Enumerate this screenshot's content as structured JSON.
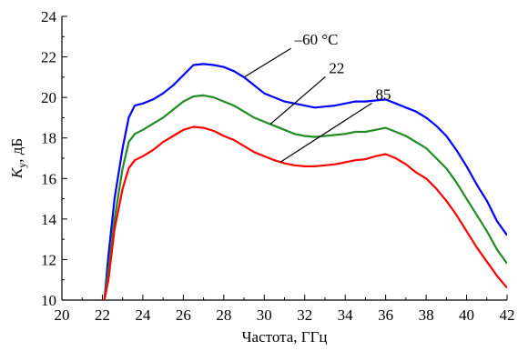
{
  "chart_data": {
    "type": "line",
    "xlabel": "Частота, ГГц",
    "ylabel_main": "K",
    "ylabel_sub": "у",
    "ylabel_rest": ", дБ",
    "xlim": [
      20,
      42
    ],
    "ylim": [
      10,
      24
    ],
    "xticks": [
      20,
      22,
      24,
      26,
      28,
      30,
      32,
      34,
      36,
      38,
      40,
      42
    ],
    "yticks": [
      10,
      12,
      14,
      16,
      18,
      20,
      22,
      24
    ],
    "grid": false,
    "legend": "none",
    "series": [
      {
        "name": "–60 °С",
        "color": "#0000ff",
        "x": [
          22.1,
          22.3,
          22.6,
          23.0,
          23.3,
          23.6,
          24.0,
          24.5,
          25.0,
          25.5,
          26.0,
          26.5,
          27.0,
          27.5,
          28.0,
          28.5,
          29.0,
          29.5,
          30.0,
          30.5,
          31.0,
          31.5,
          32.0,
          32.5,
          33.0,
          33.5,
          34.0,
          34.5,
          35.0,
          35.5,
          36.0,
          36.5,
          37.0,
          37.5,
          38.0,
          38.5,
          39.0,
          39.5,
          40.0,
          40.5,
          41.0,
          41.5,
          42.0
        ],
        "y": [
          10.0,
          12.2,
          15.0,
          17.5,
          19.0,
          19.6,
          19.7,
          19.9,
          20.2,
          20.6,
          21.1,
          21.6,
          21.65,
          21.6,
          21.5,
          21.3,
          21.0,
          20.6,
          20.2,
          20.0,
          19.8,
          19.7,
          19.6,
          19.5,
          19.55,
          19.6,
          19.7,
          19.8,
          19.8,
          19.85,
          19.9,
          19.7,
          19.5,
          19.3,
          19.0,
          18.6,
          18.1,
          17.4,
          16.6,
          15.7,
          14.9,
          13.9,
          13.2
        ]
      },
      {
        "name": "22",
        "color": "#228b22",
        "x": [
          22.1,
          22.3,
          22.6,
          23.0,
          23.3,
          23.6,
          24.0,
          24.5,
          25.0,
          25.5,
          26.0,
          26.5,
          27.0,
          27.5,
          28.0,
          28.5,
          29.0,
          29.5,
          30.0,
          30.5,
          31.0,
          31.5,
          32.0,
          32.5,
          33.0,
          33.5,
          34.0,
          34.5,
          35.0,
          35.5,
          36.0,
          36.5,
          37.0,
          37.5,
          38.0,
          38.5,
          39.0,
          39.5,
          40.0,
          40.5,
          41.0,
          41.5,
          42.0
        ],
        "y": [
          10.0,
          11.5,
          14.0,
          16.5,
          17.8,
          18.2,
          18.4,
          18.7,
          19.0,
          19.4,
          19.8,
          20.05,
          20.1,
          20.0,
          19.8,
          19.6,
          19.3,
          19.0,
          18.8,
          18.6,
          18.4,
          18.2,
          18.1,
          18.05,
          18.1,
          18.15,
          18.2,
          18.3,
          18.3,
          18.4,
          18.5,
          18.3,
          18.1,
          17.8,
          17.5,
          17.0,
          16.5,
          15.8,
          15.0,
          14.2,
          13.4,
          12.5,
          11.8
        ]
      },
      {
        "name": "85",
        "color": "#ff0000",
        "x": [
          22.1,
          22.3,
          22.6,
          23.0,
          23.3,
          23.6,
          24.0,
          24.5,
          25.0,
          25.5,
          26.0,
          26.5,
          27.0,
          27.5,
          28.0,
          28.5,
          29.0,
          29.5,
          30.0,
          30.5,
          31.0,
          31.5,
          32.0,
          32.5,
          33.0,
          33.5,
          34.0,
          34.5,
          35.0,
          35.5,
          36.0,
          36.5,
          37.0,
          37.5,
          38.0,
          38.5,
          39.0,
          39.5,
          40.0,
          40.5,
          41.0,
          41.5,
          42.0
        ],
        "y": [
          10.0,
          11.0,
          13.5,
          15.5,
          16.5,
          16.9,
          17.1,
          17.4,
          17.8,
          18.1,
          18.4,
          18.55,
          18.5,
          18.35,
          18.1,
          17.9,
          17.6,
          17.3,
          17.1,
          16.9,
          16.75,
          16.65,
          16.6,
          16.6,
          16.65,
          16.7,
          16.8,
          16.9,
          16.95,
          17.1,
          17.2,
          17.0,
          16.7,
          16.3,
          16.0,
          15.5,
          14.9,
          14.2,
          13.4,
          12.6,
          11.9,
          11.2,
          10.6
        ]
      }
    ],
    "annotations": [
      {
        "text": "–60 °С",
        "series": 0,
        "x_at": 29.0,
        "x_label": 31.5,
        "y_label": 22.6
      },
      {
        "text": "22",
        "series": 1,
        "x_at": 30.3,
        "x_label": 33.2,
        "y_label": 21.2
      },
      {
        "text": "85",
        "series": 2,
        "x_at": 30.8,
        "x_label": 35.5,
        "y_label": 19.9
      }
    ]
  }
}
